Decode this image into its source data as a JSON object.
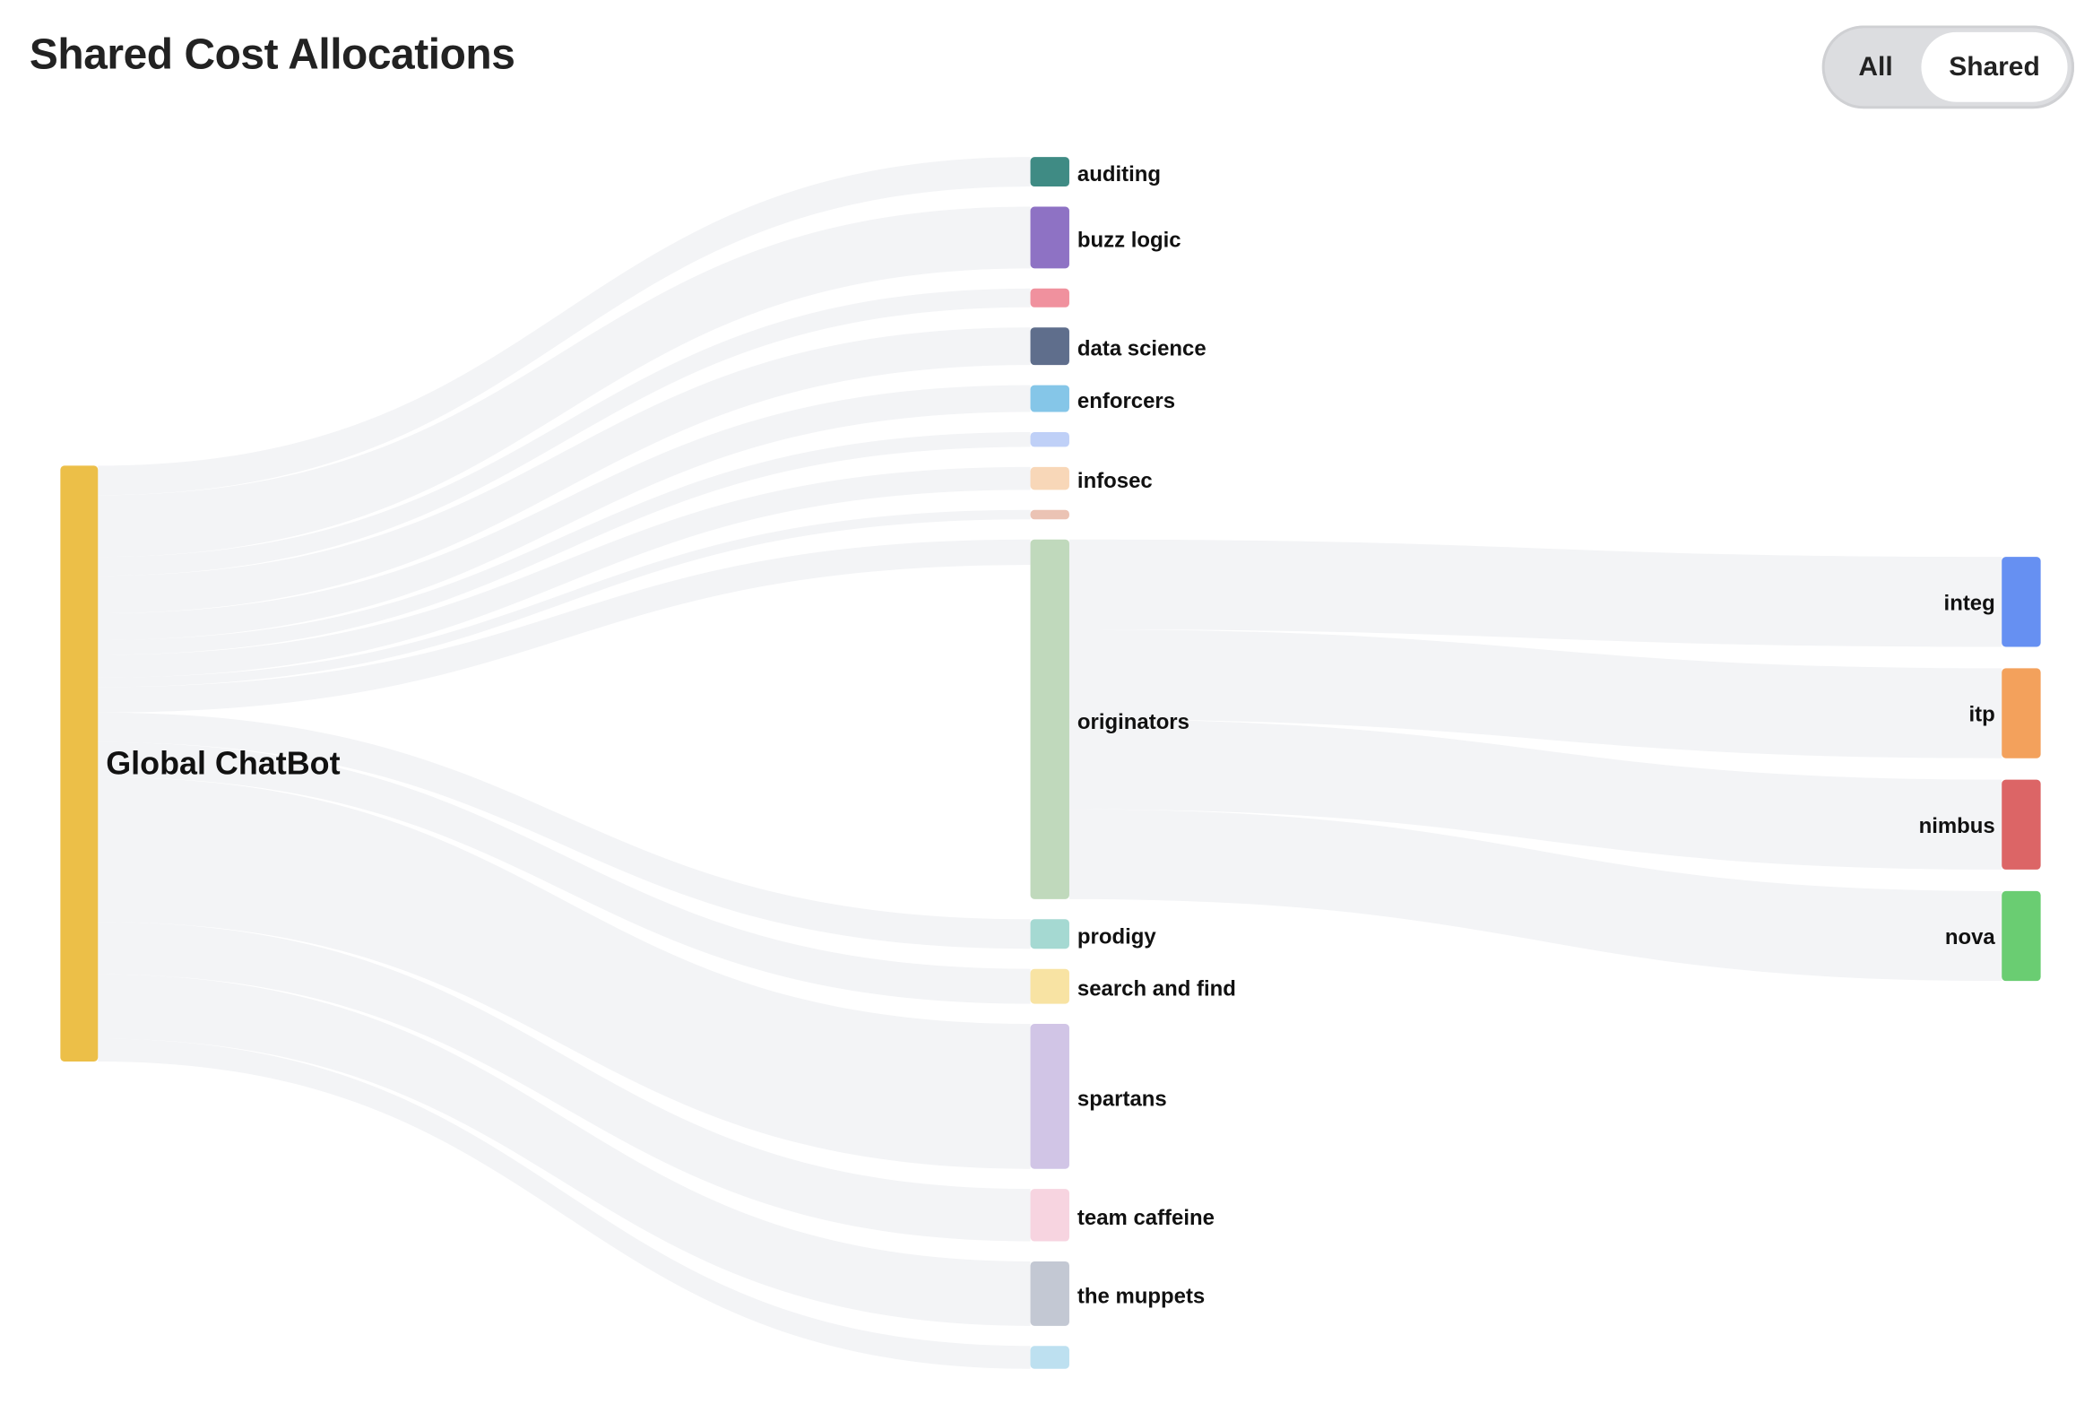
{
  "header": {
    "title": "Shared Cost Allocations"
  },
  "toggle": {
    "options": [
      "All",
      "Shared"
    ],
    "selected": "Shared"
  },
  "chart_data": {
    "type": "sankey",
    "link_color": "#f3f4f6",
    "nodes": [
      {
        "id": "global",
        "label": "Global ChatBot",
        "color": "#ecbf48",
        "column": 0
      },
      {
        "id": "auditing",
        "label": "auditing",
        "color": "#3f8b84",
        "column": 1
      },
      {
        "id": "buzz",
        "label": "buzz logic",
        "color": "#8e72c4",
        "column": 1
      },
      {
        "id": "n_pink",
        "label": "",
        "color": "#f0919e",
        "column": 1
      },
      {
        "id": "datasci",
        "label": "data science",
        "color": "#5f6e8c",
        "column": 1
      },
      {
        "id": "enforcers",
        "label": "enforcers",
        "color": "#85c6e8",
        "column": 1
      },
      {
        "id": "n_lblue",
        "label": "",
        "color": "#bfd0f7",
        "column": 1
      },
      {
        "id": "infosec",
        "label": "infosec",
        "color": "#f8d7b8",
        "column": 1
      },
      {
        "id": "n_salmon",
        "label": "",
        "color": "#ebc3b4",
        "column": 1
      },
      {
        "id": "originators",
        "label": "originators",
        "color": "#c0d9bc",
        "column": 1
      },
      {
        "id": "prodigy",
        "label": "prodigy",
        "color": "#a5d9d2",
        "column": 1
      },
      {
        "id": "search",
        "label": "search and find",
        "color": "#f8e3a3",
        "column": 1
      },
      {
        "id": "spartans",
        "label": "spartans",
        "color": "#d1c5e6",
        "column": 1
      },
      {
        "id": "caffeine",
        "label": "team caffeine",
        "color": "#f7d4e0",
        "column": 1
      },
      {
        "id": "muppets",
        "label": "the muppets",
        "color": "#c3c8d3",
        "column": 1
      },
      {
        "id": "n_sky",
        "label": "",
        "color": "#bde0f0",
        "column": 1
      },
      {
        "id": "integ",
        "label": "integ",
        "color": "#6690f2",
        "column": 2
      },
      {
        "id": "itp",
        "label": "itp",
        "color": "#f3a15c",
        "column": 2
      },
      {
        "id": "nimbus",
        "label": "nimbus",
        "color": "#dc6566",
        "column": 2
      },
      {
        "id": "nova",
        "label": "nova",
        "color": "#6acd72",
        "column": 2
      }
    ],
    "links": [
      {
        "source": "global",
        "target": "auditing",
        "value": 22
      },
      {
        "source": "global",
        "target": "buzz",
        "value": 46
      },
      {
        "source": "global",
        "target": "n_pink",
        "value": 14
      },
      {
        "source": "global",
        "target": "datasci",
        "value": 28
      },
      {
        "source": "global",
        "target": "enforcers",
        "value": 20
      },
      {
        "source": "global",
        "target": "n_lblue",
        "value": 11
      },
      {
        "source": "global",
        "target": "infosec",
        "value": 17
      },
      {
        "source": "global",
        "target": "n_salmon",
        "value": 7
      },
      {
        "source": "global",
        "target": "originators",
        "value": 19
      },
      {
        "source": "global",
        "target": "prodigy",
        "value": 22
      },
      {
        "source": "global",
        "target": "search",
        "value": 26
      },
      {
        "source": "global",
        "target": "spartans",
        "value": 108
      },
      {
        "source": "global",
        "target": "caffeine",
        "value": 39
      },
      {
        "source": "global",
        "target": "muppets",
        "value": 48
      },
      {
        "source": "global",
        "target": "n_sky",
        "value": 17
      },
      {
        "source": "originators",
        "target": "integ",
        "value": 67
      },
      {
        "source": "originators",
        "target": "itp",
        "value": 67
      },
      {
        "source": "originators",
        "target": "nimbus",
        "value": 67
      },
      {
        "source": "originators",
        "target": "nova",
        "value": 67
      }
    ]
  }
}
